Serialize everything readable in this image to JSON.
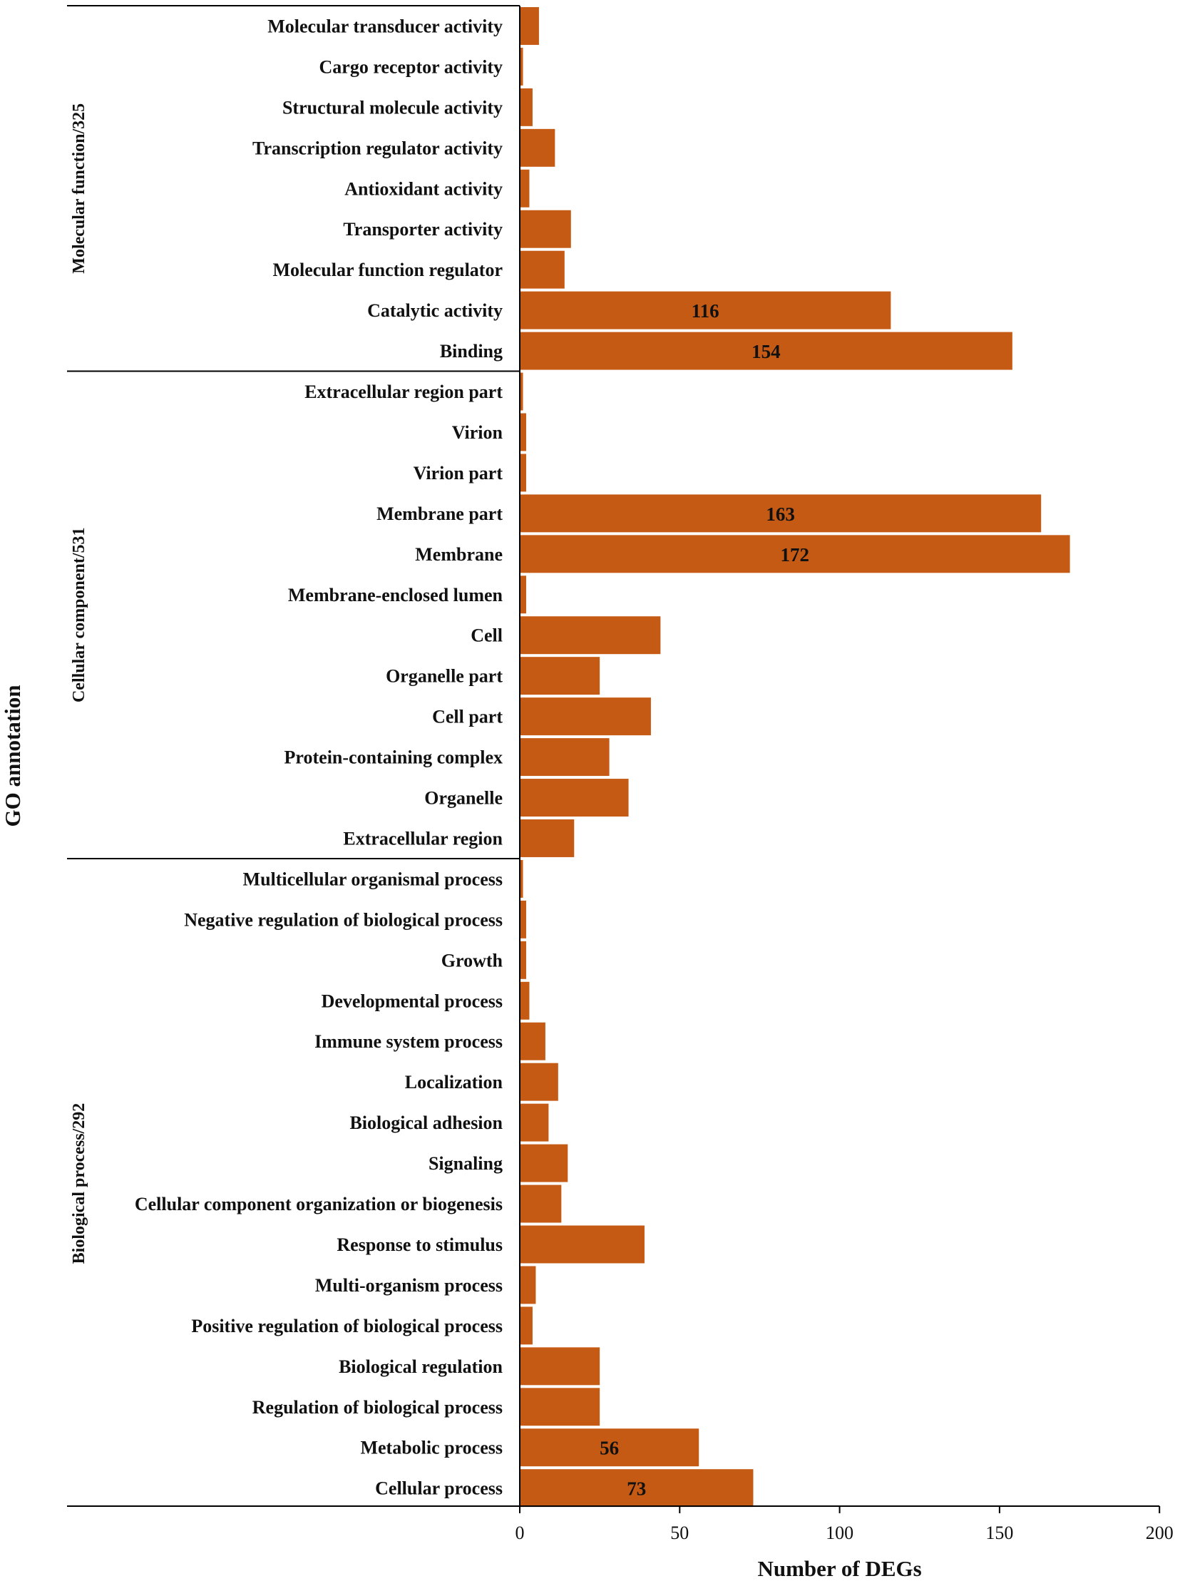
{
  "chart_data": {
    "type": "bar",
    "orientation": "horizontal",
    "xlabel": "Number of DEGs",
    "ylabel": "GO annotation",
    "xlim": [
      0,
      200
    ],
    "x_ticks": [
      "0",
      "50",
      "100",
      "150",
      "200"
    ],
    "grid": false,
    "legend": "none",
    "bar_color": "#c55a14",
    "groups": [
      {
        "label": "Molecular function/325",
        "categories": [
          {
            "name": "Molecular transducer activity",
            "value": 6
          },
          {
            "name": "Cargo receptor activity",
            "value": 1
          },
          {
            "name": "Structural molecule activity",
            "value": 4
          },
          {
            "name": "Transcription regulator activity",
            "value": 11
          },
          {
            "name": "Antioxidant activity",
            "value": 3
          },
          {
            "name": "Transporter activity",
            "value": 16
          },
          {
            "name": "Molecular function regulator",
            "value": 14
          },
          {
            "name": "Catalytic activity",
            "value": 116,
            "data_label": "116"
          },
          {
            "name": "Binding",
            "value": 154,
            "data_label": "154"
          }
        ]
      },
      {
        "label": "Cellular component/531",
        "categories": [
          {
            "name": "Extracellular region part",
            "value": 1
          },
          {
            "name": "Virion",
            "value": 2
          },
          {
            "name": "Virion part",
            "value": 2
          },
          {
            "name": "Membrane part",
            "value": 163,
            "data_label": "163"
          },
          {
            "name": "Membrane",
            "value": 172,
            "data_label": "172"
          },
          {
            "name": "Membrane-enclosed lumen",
            "value": 2
          },
          {
            "name": "Cell",
            "value": 44
          },
          {
            "name": "Organelle part",
            "value": 25
          },
          {
            "name": "Cell part",
            "value": 41
          },
          {
            "name": "Protein-containing complex",
            "value": 28
          },
          {
            "name": "Organelle",
            "value": 34
          },
          {
            "name": "Extracellular region",
            "value": 17
          }
        ]
      },
      {
        "label": "Biological process/292",
        "categories": [
          {
            "name": "Multicellular organismal process",
            "value": 1
          },
          {
            "name": "Negative regulation of biological process",
            "value": 2
          },
          {
            "name": "Growth",
            "value": 2
          },
          {
            "name": "Developmental process",
            "value": 3
          },
          {
            "name": "Immune system process",
            "value": 8
          },
          {
            "name": "Localization",
            "value": 12
          },
          {
            "name": "Biological adhesion",
            "value": 9
          },
          {
            "name": "Signaling",
            "value": 15
          },
          {
            "name": "Cellular component organization or biogenesis",
            "value": 13
          },
          {
            "name": "Response to stimulus",
            "value": 39
          },
          {
            "name": "Multi-organism process",
            "value": 5
          },
          {
            "name": "Positive regulation of biological process",
            "value": 4
          },
          {
            "name": "Biological regulation",
            "value": 25
          },
          {
            "name": "Regulation of biological process",
            "value": 25
          },
          {
            "name": "Metabolic process",
            "value": 56,
            "data_label": "56"
          },
          {
            "name": "Cellular process",
            "value": 73,
            "data_label": "73"
          }
        ]
      }
    ]
  }
}
